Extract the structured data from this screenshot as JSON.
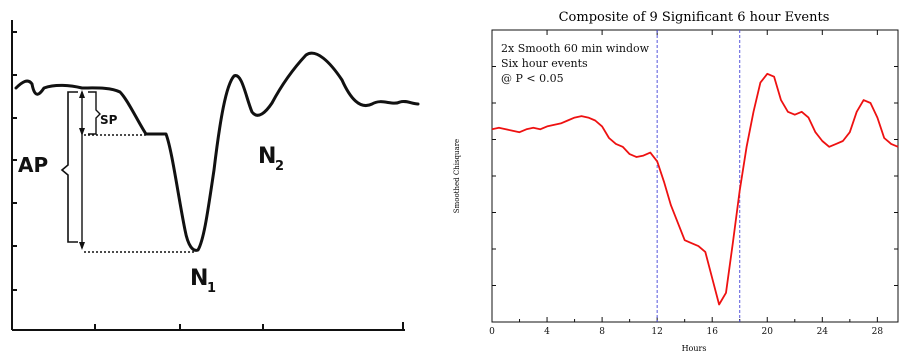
{
  "left_sketch": {
    "labels": {
      "ap": "AP",
      "sp": "SP",
      "n1_main": "N",
      "n1_sub": "1",
      "n2_main": "N",
      "n2_sub": "2"
    },
    "line_color": "#111111"
  },
  "chart_data": {
    "type": "line",
    "title": "Composite of 9 Significant 6 hour Events",
    "xlabel": "Hours",
    "ylabel": "Smoothed Chisquare",
    "xlim": [
      0,
      29.5
    ],
    "x_ticks": [
      0,
      4,
      8,
      12,
      16,
      20,
      24,
      28
    ],
    "y_ticks_labeled": false,
    "grid": false,
    "annotations": [
      "2x Smooth 60 min window",
      "Six hour events",
      "@ P < 0.05"
    ],
    "vlines": [
      12,
      18
    ],
    "vline_color": "#5555dd",
    "series": [
      {
        "color": "#ee1111",
        "x": [
          0,
          0.5,
          1,
          1.5,
          2,
          2.5,
          3,
          3.5,
          4,
          4.5,
          5,
          5.5,
          6,
          6.5,
          7,
          7.5,
          8,
          8.5,
          9,
          9.5,
          10,
          10.5,
          11,
          11.5,
          12,
          12.5,
          13,
          13.5,
          14,
          14.5,
          15,
          15.5,
          16,
          16.5,
          17,
          17.5,
          18,
          18.5,
          19,
          19.5,
          20,
          20.5,
          21,
          21.5,
          22,
          22.5,
          23,
          23.5,
          24,
          24.5,
          25,
          25.5,
          26,
          26.5,
          27,
          27.5,
          28,
          28.5,
          29,
          29.5
        ],
        "y": [
          0.66,
          0.665,
          0.66,
          0.655,
          0.65,
          0.66,
          0.665,
          0.66,
          0.67,
          0.675,
          0.68,
          0.69,
          0.7,
          0.705,
          0.7,
          0.69,
          0.67,
          0.63,
          0.61,
          0.6,
          0.575,
          0.565,
          0.57,
          0.58,
          0.55,
          0.48,
          0.4,
          0.34,
          0.28,
          0.27,
          0.26,
          0.24,
          0.15,
          0.06,
          0.1,
          0.27,
          0.45,
          0.6,
          0.72,
          0.82,
          0.85,
          0.84,
          0.76,
          0.72,
          0.71,
          0.72,
          0.7,
          0.65,
          0.62,
          0.6,
          0.61,
          0.62,
          0.65,
          0.72,
          0.76,
          0.75,
          0.7,
          0.63,
          0.61,
          0.6
        ]
      }
    ]
  }
}
